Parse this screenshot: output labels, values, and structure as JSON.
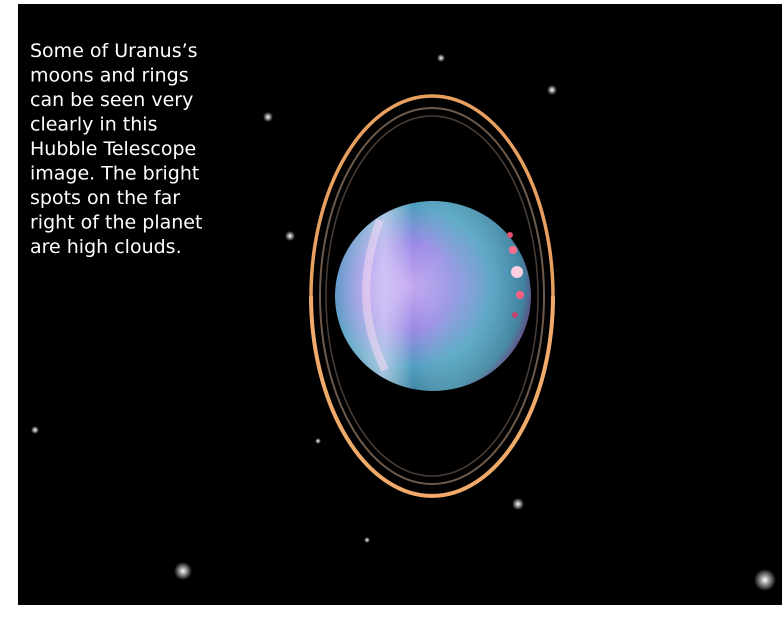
{
  "caption": {
    "lines": [
      "Some of Uranus’s",
      "moons and rings",
      "can be seen very",
      "clearly in this",
      "Hubble Telescope",
      "image. The bright",
      "spots on the far",
      "right of the planet",
      "are high clouds."
    ]
  }
}
